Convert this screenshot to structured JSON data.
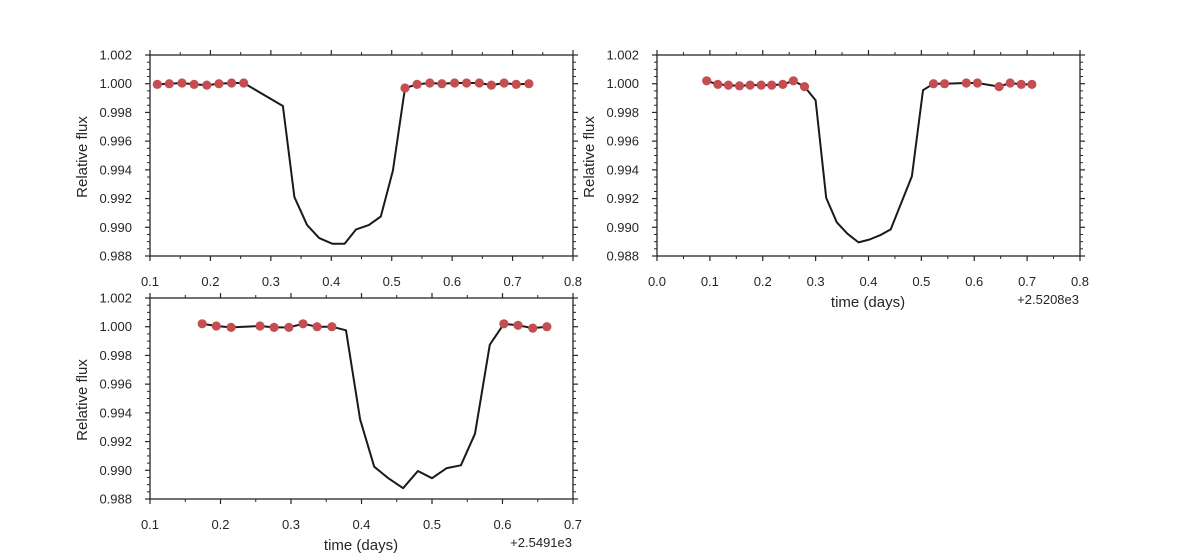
{
  "colors": {
    "model_line": "#1a1a1a",
    "observed_points": "#c44e52",
    "axes": "#262626",
    "background": "#ffffff"
  },
  "chart_data": [
    {
      "type": "line",
      "panel": "top-left",
      "xlabel": "",
      "ylabel": "Relative flux",
      "x_offset_label": "",
      "xlim": [
        0.1,
        0.8
      ],
      "ylim": [
        0.988,
        1.002
      ],
      "xticks": [
        0.1,
        0.2,
        0.3,
        0.4,
        0.5,
        0.6,
        0.7,
        0.8
      ],
      "xtick_labels": [
        "0.1",
        "0.2",
        "0.3",
        "0.4",
        "0.5",
        "0.6",
        "0.7",
        "0.8"
      ],
      "yticks": [
        0.988,
        0.99,
        0.992,
        0.994,
        0.996,
        0.998,
        1.0,
        1.002
      ],
      "ytick_labels": [
        "0.988",
        "0.990",
        "0.992",
        "0.994",
        "0.996",
        "0.998",
        "1.000",
        "1.002"
      ],
      "grid": false,
      "series": [
        {
          "style": "line",
          "x": [
            0.112,
            0.132,
            0.153,
            0.173,
            0.194,
            0.214,
            0.235,
            0.255,
            0.32,
            0.339,
            0.36,
            0.38,
            0.402,
            0.422,
            0.441,
            0.462,
            0.482,
            0.502,
            0.522,
            0.542,
            0.563,
            0.583,
            0.604,
            0.624,
            0.645,
            0.665,
            0.686,
            0.706,
            0.727
          ],
          "y": [
            0.99995,
            1.0,
            1.00005,
            0.99995,
            0.9999,
            1.0,
            1.00005,
            1.00005,
            0.99845,
            0.9921,
            0.99015,
            0.98925,
            0.98885,
            0.98885,
            0.98985,
            0.99015,
            0.99075,
            0.99395,
            0.9997,
            0.99995,
            1.00005,
            1.0,
            1.00005,
            1.00005,
            1.00005,
            0.9999,
            1.00005,
            0.99995,
            1.0
          ]
        },
        {
          "style": "points",
          "x": [
            0.112,
            0.132,
            0.153,
            0.173,
            0.194,
            0.214,
            0.235,
            0.255,
            0.522,
            0.542,
            0.563,
            0.583,
            0.604,
            0.624,
            0.645,
            0.665,
            0.686,
            0.706,
            0.727
          ],
          "y": [
            0.99995,
            1.0,
            1.00005,
            0.99995,
            0.9999,
            1.0,
            1.00005,
            1.00005,
            0.9997,
            0.99995,
            1.00005,
            1.0,
            1.00005,
            1.00005,
            1.00005,
            0.9999,
            1.00005,
            0.99995,
            1.0
          ]
        }
      ]
    },
    {
      "type": "line",
      "panel": "top-right",
      "xlabel": "time (days)",
      "ylabel": "Relative flux",
      "x_offset_label": "+2.5208e3",
      "xlim": [
        0.0,
        0.8
      ],
      "ylim": [
        0.988,
        1.002
      ],
      "xticks": [
        0.0,
        0.1,
        0.2,
        0.3,
        0.4,
        0.5,
        0.6,
        0.7,
        0.8
      ],
      "xtick_labels": [
        "0.0",
        "0.1",
        "0.2",
        "0.3",
        "0.4",
        "0.5",
        "0.6",
        "0.7",
        "0.8"
      ],
      "yticks": [
        0.988,
        0.99,
        0.992,
        0.994,
        0.996,
        0.998,
        1.0,
        1.002
      ],
      "ytick_labels": [
        "0.988",
        "0.990",
        "0.992",
        "0.994",
        "0.996",
        "0.998",
        "1.000",
        "1.002"
      ],
      "grid": false,
      "series": [
        {
          "style": "line",
          "x": [
            0.094,
            0.115,
            0.135,
            0.156,
            0.176,
            0.197,
            0.217,
            0.238,
            0.258,
            0.279,
            0.3,
            0.32,
            0.34,
            0.36,
            0.381,
            0.402,
            0.422,
            0.442,
            0.482,
            0.503,
            0.523,
            0.544,
            0.585,
            0.606,
            0.647,
            0.668,
            0.689,
            0.709
          ],
          "y": [
            1.0002,
            0.99995,
            0.9999,
            0.99985,
            0.9999,
            0.9999,
            0.9999,
            0.99995,
            1.0002,
            0.9998,
            0.99885,
            0.99205,
            0.99035,
            0.98955,
            0.98895,
            0.98915,
            0.98945,
            0.98985,
            0.99355,
            0.99955,
            1.0,
            1.0,
            1.00005,
            1.00005,
            0.9998,
            1.00005,
            0.99995,
            0.99995
          ]
        },
        {
          "style": "points",
          "x": [
            0.094,
            0.115,
            0.135,
            0.156,
            0.176,
            0.197,
            0.217,
            0.238,
            0.258,
            0.279,
            0.523,
            0.544,
            0.585,
            0.606,
            0.647,
            0.668,
            0.689,
            0.709
          ],
          "y": [
            1.0002,
            0.99995,
            0.9999,
            0.99985,
            0.9999,
            0.9999,
            0.9999,
            0.99995,
            1.0002,
            0.9998,
            1.0,
            1.0,
            1.00005,
            1.00005,
            0.9998,
            1.00005,
            0.99995,
            0.99995
          ]
        }
      ]
    },
    {
      "type": "line",
      "panel": "bottom-left",
      "xlabel": "time (days)",
      "ylabel": "Relative flux",
      "x_offset_label": "+2.5491e3",
      "xlim": [
        0.1,
        0.7
      ],
      "ylim": [
        0.988,
        1.002
      ],
      "xticks": [
        0.1,
        0.2,
        0.3,
        0.4,
        0.5,
        0.6,
        0.7
      ],
      "xtick_labels": [
        "0.1",
        "0.2",
        "0.3",
        "0.4",
        "0.5",
        "0.6",
        "0.7"
      ],
      "yticks": [
        0.988,
        0.99,
        0.992,
        0.994,
        0.996,
        0.998,
        1.0,
        1.002
      ],
      "ytick_labels": [
        "0.988",
        "0.990",
        "0.992",
        "0.994",
        "0.996",
        "0.998",
        "1.000",
        "1.002"
      ],
      "grid": false,
      "series": [
        {
          "style": "line",
          "x": [
            0.174,
            0.194,
            0.215,
            0.256,
            0.276,
            0.297,
            0.317,
            0.337,
            0.358,
            0.378,
            0.398,
            0.418,
            0.438,
            0.459,
            0.48,
            0.5,
            0.521,
            0.541,
            0.561,
            0.582,
            0.602,
            0.622,
            0.643,
            0.663
          ],
          "y": [
            1.0002,
            1.00005,
            0.99995,
            1.00005,
            0.99995,
            0.99995,
            1.0002,
            1.0,
            1.0,
            0.99975,
            0.99355,
            0.99025,
            0.98945,
            0.98875,
            0.98995,
            0.98945,
            0.99015,
            0.99035,
            0.99255,
            0.99875,
            1.0002,
            1.0001,
            0.9999,
            1.0
          ]
        },
        {
          "style": "points",
          "x": [
            0.174,
            0.194,
            0.215,
            0.256,
            0.276,
            0.297,
            0.317,
            0.337,
            0.358,
            0.602,
            0.622,
            0.643,
            0.663
          ],
          "y": [
            1.0002,
            1.00005,
            0.99995,
            1.00005,
            0.99995,
            0.99995,
            1.0002,
            1.0,
            1.0,
            1.0002,
            1.0001,
            0.9999,
            1.0
          ]
        }
      ]
    }
  ]
}
